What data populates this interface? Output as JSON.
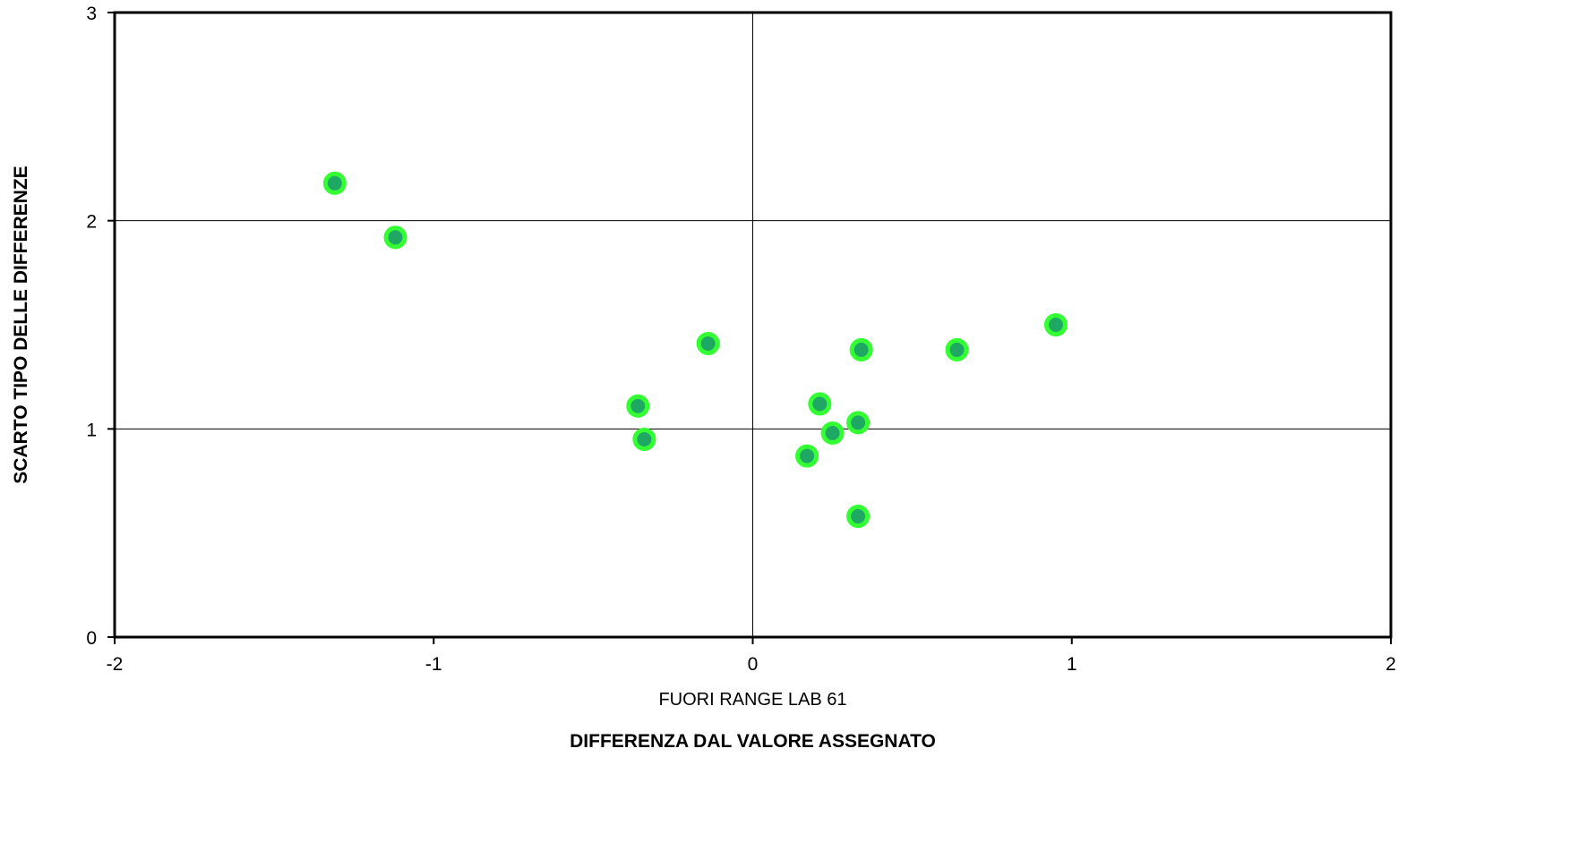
{
  "chart_data": {
    "type": "scatter",
    "title": "",
    "xlabel": "DIFFERENZA DAL VALORE ASSEGNATO",
    "ylabel": "SCARTO TIPO DELLE DIFFERENZE",
    "annotation": "FUORI RANGE LAB 61",
    "xlim": [
      -2,
      2
    ],
    "ylim": [
      0,
      3
    ],
    "x_ticks": [
      -2,
      -1,
      0,
      1,
      2
    ],
    "y_ticks": [
      0,
      1,
      2,
      3
    ],
    "grid": "major gridlines at y = 1, 2 and at x = 0",
    "marker_fill": "#1fa864",
    "marker_edge": "#33ff33",
    "points": [
      {
        "x": -1.31,
        "y": 2.18
      },
      {
        "x": -1.12,
        "y": 1.92
      },
      {
        "x": -0.14,
        "y": 1.41
      },
      {
        "x": -0.36,
        "y": 1.11
      },
      {
        "x": -0.34,
        "y": 0.95
      },
      {
        "x": 0.17,
        "y": 0.87
      },
      {
        "x": 0.21,
        "y": 1.12
      },
      {
        "x": 0.25,
        "y": 0.98
      },
      {
        "x": 0.33,
        "y": 1.03
      },
      {
        "x": 0.34,
        "y": 1.38
      },
      {
        "x": 0.33,
        "y": 0.58
      },
      {
        "x": 0.64,
        "y": 1.38
      },
      {
        "x": 0.95,
        "y": 1.5
      }
    ]
  }
}
